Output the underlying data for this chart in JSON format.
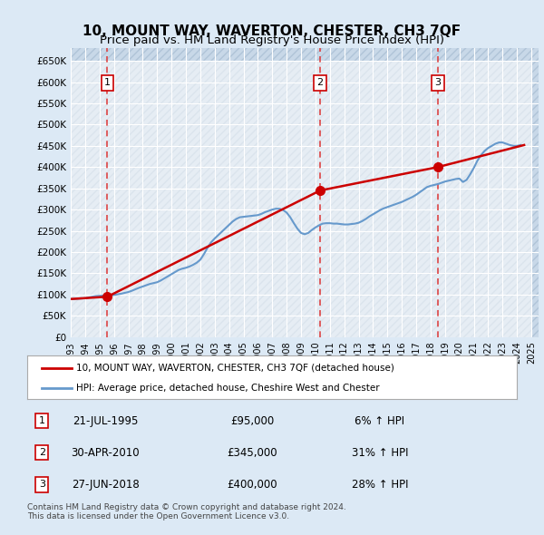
{
  "title": "10, MOUNT WAY, WAVERTON, CHESTER, CH3 7QF",
  "subtitle": "Price paid vs. HM Land Registry's House Price Index (HPI)",
  "title_fontsize": 11,
  "subtitle_fontsize": 9.5,
  "background_color": "#dce9f5",
  "plot_bg_color": "#dce9f5",
  "hatch_color": "#c0cfe0",
  "grid_color": "#ffffff",
  "ylim": [
    0,
    680000
  ],
  "yticks": [
    0,
    50000,
    100000,
    150000,
    200000,
    250000,
    300000,
    350000,
    400000,
    450000,
    500000,
    550000,
    600000,
    650000
  ],
  "ytick_labels": [
    "£0",
    "£50K",
    "£100K",
    "£150K",
    "£200K",
    "£250K",
    "£300K",
    "£350K",
    "£400K",
    "£450K",
    "£500K",
    "£550K",
    "£600K",
    "£650K"
  ],
  "xlim_start": 1993.0,
  "xlim_end": 2025.5,
  "xticks": [
    1993,
    1994,
    1995,
    1996,
    1997,
    1998,
    1999,
    2000,
    2001,
    2002,
    2003,
    2004,
    2005,
    2006,
    2007,
    2008,
    2009,
    2010,
    2011,
    2012,
    2013,
    2014,
    2015,
    2016,
    2017,
    2018,
    2019,
    2020,
    2021,
    2022,
    2023,
    2024,
    2025
  ],
  "sale_line_color": "#cc0000",
  "hpi_line_color": "#6699cc",
  "sale_marker_color": "#cc0000",
  "vline_color": "#dd4444",
  "legend_label_sale": "10, MOUNT WAY, WAVERTON, CHESTER, CH3 7QF (detached house)",
  "legend_label_hpi": "HPI: Average price, detached house, Cheshire West and Chester",
  "transactions": [
    {
      "num": 1,
      "date_dec": 1995.55,
      "price": 95000,
      "label": "1",
      "date_str": "21-JUL-1995",
      "price_str": "£95,000",
      "pct": "6%",
      "arrow": "↑"
    },
    {
      "num": 2,
      "date_dec": 2010.33,
      "price": 345000,
      "label": "2",
      "date_str": "30-APR-2010",
      "price_str": "£345,000",
      "pct": "31%",
      "arrow": "↑"
    },
    {
      "num": 3,
      "date_dec": 2018.49,
      "price": 400000,
      "label": "3",
      "date_str": "27-JUN-2018",
      "price_str": "£400,000",
      "pct": "28%",
      "arrow": "↑"
    }
  ],
  "footnote": "Contains HM Land Registry data © Crown copyright and database right 2024.\nThis data is licensed under the Open Government Licence v3.0.",
  "hpi_data": {
    "years": [
      1993.0,
      1993.25,
      1993.5,
      1993.75,
      1994.0,
      1994.25,
      1994.5,
      1994.75,
      1995.0,
      1995.25,
      1995.5,
      1995.75,
      1996.0,
      1996.25,
      1996.5,
      1996.75,
      1997.0,
      1997.25,
      1997.5,
      1997.75,
      1998.0,
      1998.25,
      1998.5,
      1998.75,
      1999.0,
      1999.25,
      1999.5,
      1999.75,
      2000.0,
      2000.25,
      2000.5,
      2000.75,
      2001.0,
      2001.25,
      2001.5,
      2001.75,
      2002.0,
      2002.25,
      2002.5,
      2002.75,
      2003.0,
      2003.25,
      2003.5,
      2003.75,
      2004.0,
      2004.25,
      2004.5,
      2004.75,
      2005.0,
      2005.25,
      2005.5,
      2005.75,
      2006.0,
      2006.25,
      2006.5,
      2006.75,
      2007.0,
      2007.25,
      2007.5,
      2007.75,
      2008.0,
      2008.25,
      2008.5,
      2008.75,
      2009.0,
      2009.25,
      2009.5,
      2009.75,
      2010.0,
      2010.25,
      2010.5,
      2010.75,
      2011.0,
      2011.25,
      2011.5,
      2011.75,
      2012.0,
      2012.25,
      2012.5,
      2012.75,
      2013.0,
      2013.25,
      2013.5,
      2013.75,
      2014.0,
      2014.25,
      2014.5,
      2014.75,
      2015.0,
      2015.25,
      2015.5,
      2015.75,
      2016.0,
      2016.25,
      2016.5,
      2016.75,
      2017.0,
      2017.25,
      2017.5,
      2017.75,
      2018.0,
      2018.25,
      2018.5,
      2018.75,
      2019.0,
      2019.25,
      2019.5,
      2019.75,
      2020.0,
      2020.25,
      2020.5,
      2020.75,
      2021.0,
      2021.25,
      2021.5,
      2021.75,
      2022.0,
      2022.25,
      2022.5,
      2022.75,
      2023.0,
      2023.25,
      2023.5,
      2023.75,
      2024.0,
      2024.25
    ],
    "values": [
      89500,
      89800,
      90200,
      90800,
      91500,
      93000,
      95000,
      96500,
      97000,
      97500,
      98000,
      98500,
      99000,
      100500,
      102000,
      104000,
      106000,
      109000,
      112500,
      116000,
      119000,
      122000,
      125000,
      127000,
      129000,
      133000,
      138000,
      143000,
      148000,
      153000,
      158000,
      161000,
      163000,
      166000,
      170000,
      175000,
      182000,
      195000,
      210000,
      223000,
      232000,
      240000,
      248000,
      256000,
      264000,
      272000,
      278000,
      282000,
      283000,
      284000,
      285000,
      286000,
      287000,
      290000,
      294000,
      297000,
      300000,
      302000,
      302000,
      299000,
      293000,
      282000,
      268000,
      255000,
      245000,
      242000,
      245000,
      252000,
      258000,
      263000,
      267000,
      268000,
      268000,
      267000,
      267000,
      266000,
      265000,
      265000,
      266000,
      267000,
      269000,
      273000,
      278000,
      284000,
      289000,
      294000,
      299000,
      303000,
      306000,
      309000,
      312000,
      315000,
      318000,
      322000,
      326000,
      330000,
      335000,
      341000,
      347000,
      353000,
      356000,
      358000,
      360000,
      363000,
      366000,
      368000,
      370000,
      372000,
      373000,
      365000,
      370000,
      383000,
      398000,
      415000,
      428000,
      438000,
      445000,
      450000,
      455000,
      458000,
      458000,
      455000,
      452000,
      450000,
      450000,
      452000
    ]
  },
  "sale_data": {
    "years": [
      1993.0,
      1995.55,
      2010.33,
      2018.49,
      2024.5
    ],
    "values": [
      89500,
      95000,
      345000,
      400000,
      452000
    ]
  }
}
